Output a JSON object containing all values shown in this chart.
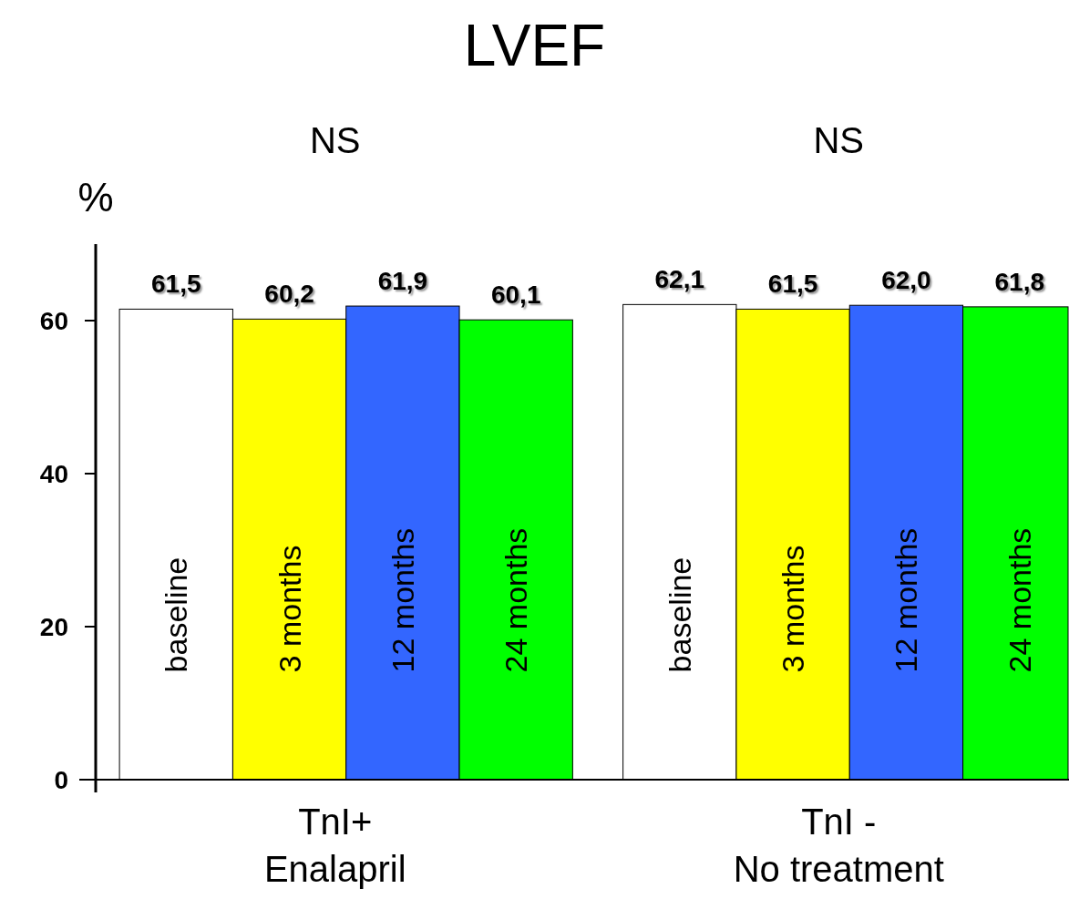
{
  "chart_data": {
    "type": "bar",
    "title": "LVEF",
    "ylabel": "%",
    "categories": [
      "TnI+\nEnalapril",
      "TnI -\nNo treatment"
    ],
    "series": [
      {
        "name": "baseline",
        "color": "#ffffff",
        "values": [
          61.5,
          62.1
        ],
        "value_labels": [
          "61,5",
          "62,1"
        ]
      },
      {
        "name": "3 months",
        "color": "#ffff00",
        "values": [
          60.2,
          61.5
        ],
        "value_labels": [
          "60,2",
          "61,5"
        ]
      },
      {
        "name": "12 months",
        "color": "#3366ff",
        "values": [
          61.9,
          62.0
        ],
        "value_labels": [
          "61,9",
          "62,0"
        ]
      },
      {
        "name": "24 months",
        "color": "#00ff00",
        "values": [
          60.1,
          61.8
        ],
        "value_labels": [
          "60,1",
          "61,8"
        ]
      }
    ],
    "annotations": [
      "NS",
      "NS"
    ],
    "ylim": [
      0,
      70
    ],
    "yticks": [
      0,
      20,
      40,
      60
    ],
    "grid": false
  }
}
